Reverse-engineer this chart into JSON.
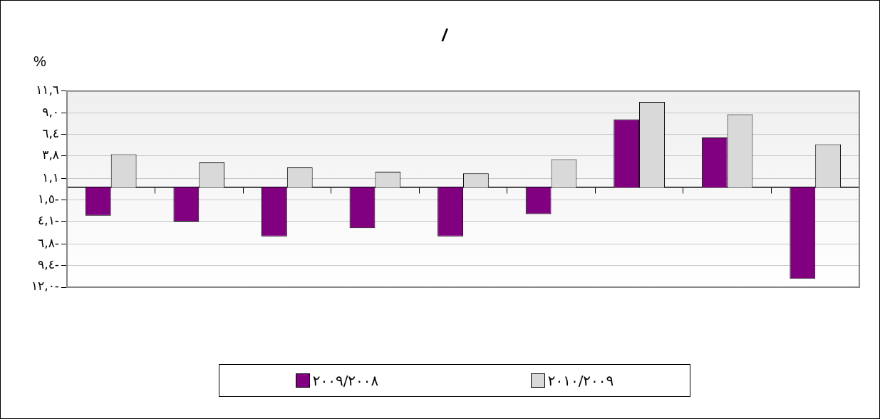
{
  "chart_data": {
    "type": "bar",
    "title": "/",
    "ylabel": "%",
    "categories": [
      null,
      null,
      null,
      null,
      null,
      null,
      null,
      null,
      null
    ],
    "series": [
      {
        "name": "٢٠٠٩/٢٠٠٨",
        "color": "#800080",
        "values": [
          -3.4,
          -4.1,
          -5.9,
          -4.9,
          -5.9,
          -3.2,
          8.2,
          6.0,
          -11.0
        ]
      },
      {
        "name": "٢٠١٠/٢٠٠٩",
        "color": "#d9d9d9",
        "values": [
          4.0,
          3.0,
          2.4,
          1.9,
          1.7,
          3.4,
          10.3,
          8.8,
          5.2
        ]
      }
    ],
    "ylim": [
      -12.0,
      11.6
    ],
    "yticks": [
      {
        "value": -12.0,
        "label": "١٢,٠-"
      },
      {
        "value": -9.4,
        "label": "٩,٤-"
      },
      {
        "value": -6.8,
        "label": "٦,٨-"
      },
      {
        "value": -4.1,
        "label": "٤,١-"
      },
      {
        "value": -1.5,
        "label": "١,٥-"
      },
      {
        "value": 1.1,
        "label": "١,١"
      },
      {
        "value": 3.8,
        "label": "٣,٨"
      },
      {
        "value": 6.4,
        "label": "٦,٤"
      },
      {
        "value": 9.0,
        "label": "٩,٠"
      },
      {
        "value": 11.6,
        "label": "١١,٦"
      }
    ],
    "grid": "y",
    "legend": "bottom"
  }
}
